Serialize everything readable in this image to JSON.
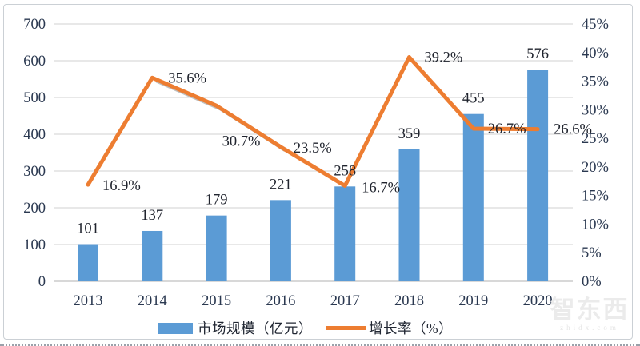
{
  "legend": {
    "bar_label": "市场规模（亿元）",
    "line_label": "增长率（%）"
  },
  "watermark": {
    "brand": "智东西",
    "domain": "zhidx.com"
  },
  "colors": {
    "bar": "#5B9BD5",
    "line": "#ED7D31",
    "line_shadow": "#b3b3b3",
    "grid": "#D9D9D9",
    "axis_line": "#CBCBCB",
    "tick_text": "#2A3850",
    "label_text": "#20242E"
  },
  "chart_data": {
    "type": "bar+line",
    "title": "",
    "categories": [
      "2013",
      "2014",
      "2015",
      "2016",
      "2017",
      "2018",
      "2019",
      "2020"
    ],
    "series": [
      {
        "name": "市场规模（亿元）",
        "type": "bar",
        "axis": "left",
        "color": "#5B9BD5",
        "values": [
          101,
          137,
          179,
          221,
          258,
          359,
          455,
          576
        ],
        "data_labels": [
          "101",
          "137",
          "179",
          "221",
          "258",
          "359",
          "455",
          "576"
        ]
      },
      {
        "name": "增长率（%）",
        "type": "line",
        "axis": "right",
        "color": "#ED7D31",
        "values": [
          16.9,
          35.6,
          30.7,
          23.5,
          16.7,
          39.2,
          26.7,
          26.6
        ],
        "data_labels": [
          "16.9%",
          "35.6%",
          "30.7%",
          "23.5%",
          "16.7%",
          "39.2%",
          "26.7%",
          "26.6%"
        ],
        "label_offsets": [
          {
            "dx": 18,
            "dy": 1
          },
          {
            "dx": 20,
            "dy": 0
          },
          {
            "dx": 7,
            "dy": 44
          },
          {
            "dx": 16,
            "dy": 1
          },
          {
            "dx": 21,
            "dy": 2
          },
          {
            "dx": 19,
            "dy": 0
          },
          {
            "dx": 18,
            "dy": 0
          },
          {
            "dx": 20,
            "dy": 0
          }
        ]
      }
    ],
    "left_axis": {
      "min": 0,
      "max": 700,
      "step": 100,
      "ticks": [
        "0",
        "100",
        "200",
        "300",
        "400",
        "500",
        "600",
        "700"
      ]
    },
    "right_axis": {
      "min": 0,
      "max": 45,
      "step": 5,
      "ticks": [
        "0%",
        "5%",
        "10%",
        "15%",
        "20%",
        "25%",
        "30%",
        "35%",
        "40%",
        "45%"
      ]
    },
    "grid": true,
    "legend_position": "bottom"
  }
}
